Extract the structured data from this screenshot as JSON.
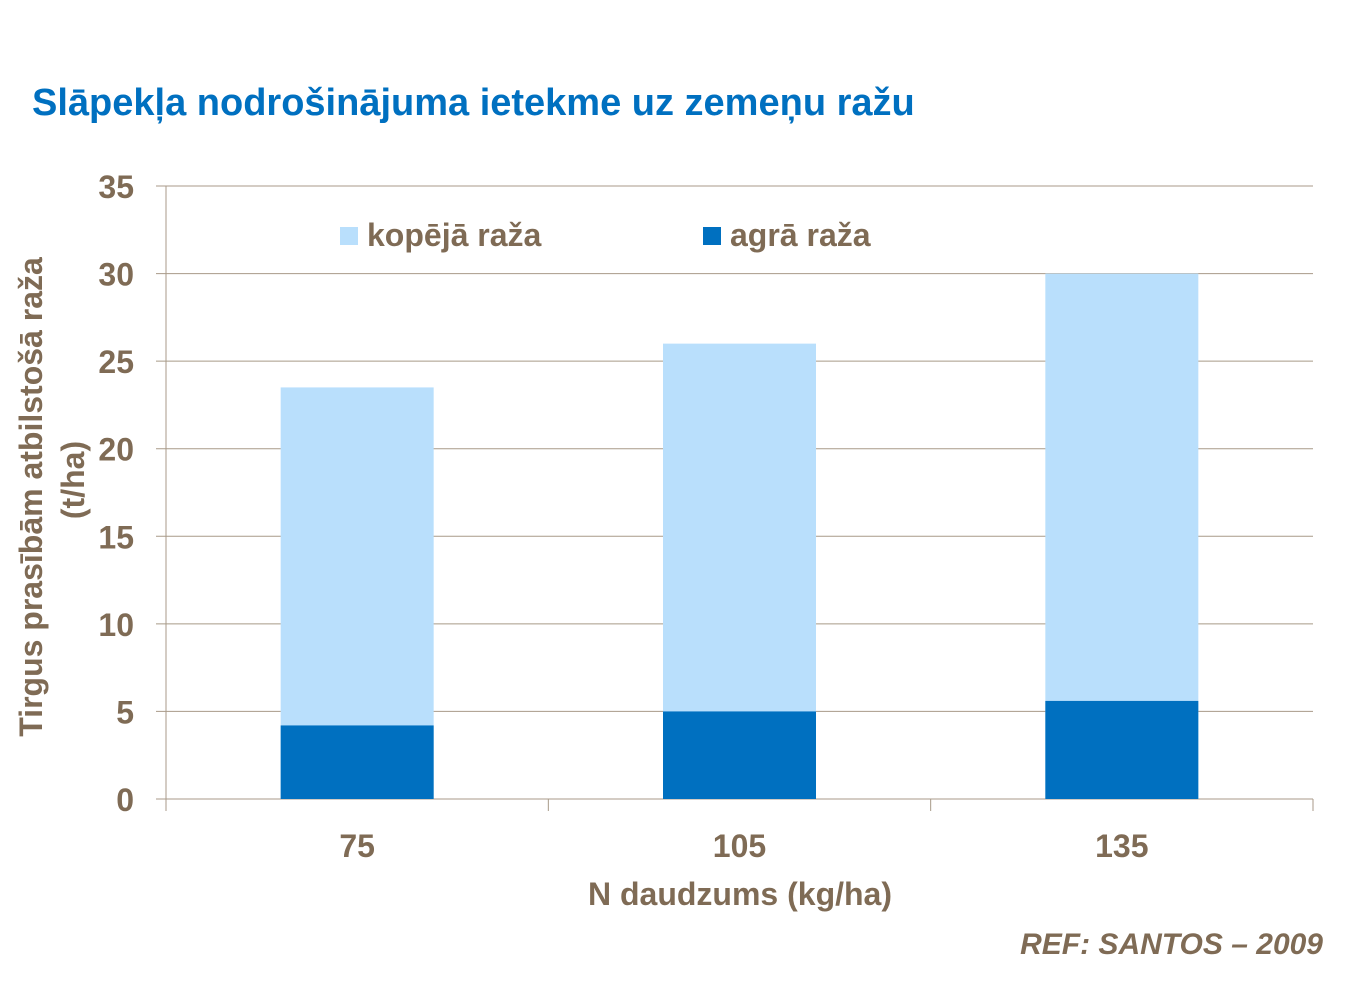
{
  "chart_data": {
    "type": "bar",
    "title": "Slāpekļa nodrošinājuma ietekme uz zemeņu ražu",
    "xlabel": "N daudzums (kg/ha)",
    "ylabel": [
      "Tirgus prasībām atbilstošā  raža",
      "(t/ha)"
    ],
    "categories": [
      "75",
      "105",
      "135"
    ],
    "series": [
      {
        "name": "kopējā raža",
        "values": [
          23.5,
          26.0,
          30.0
        ],
        "color": "#b9dffc"
      },
      {
        "name": "agrā raža",
        "values": [
          4.2,
          5.0,
          5.6
        ],
        "color": "#0070c0"
      }
    ],
    "ylim": [
      0,
      35
    ],
    "yticks": [
      "0",
      "5",
      "10",
      "15",
      "20",
      "25",
      "30",
      "35"
    ],
    "grid": true,
    "legend": "top",
    "overlaid": true
  },
  "ref": "REF:  SANTOS – 2009"
}
